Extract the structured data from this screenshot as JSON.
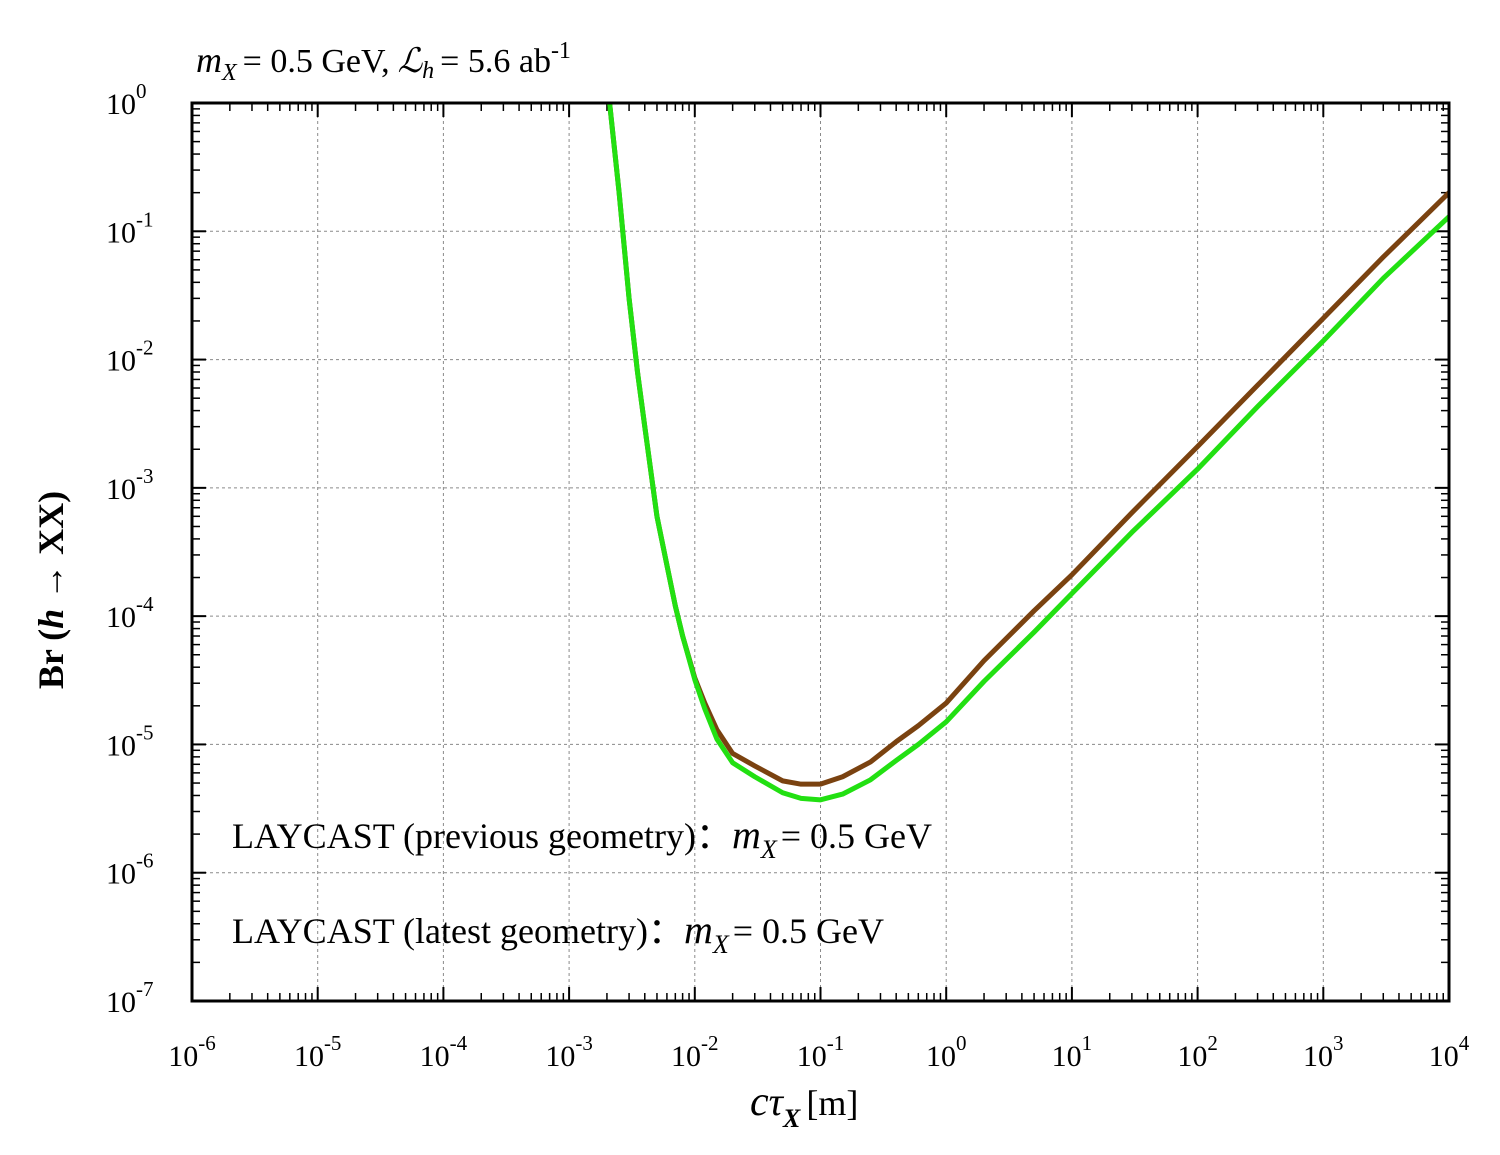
{
  "chart_data": {
    "type": "line",
    "title_parts": {
      "m": "m",
      "m_sub": "X",
      "mass_text": "= 0.5 GeV,",
      "lumi_symbol": "ℒ",
      "lumi_sub": "h",
      "lumi_text": "= 5.6 ab",
      "lumi_sup": "-1"
    },
    "xlabel_parts": {
      "c": "c",
      "tau": "τ",
      "sub": "X",
      "unit": "[m]"
    },
    "ylabel_parts": {
      "pre": "Br (",
      "h": "h",
      "post": " → XX)"
    },
    "x_scale": "log",
    "y_scale": "log",
    "xlim": [
      1e-06,
      10000.0
    ],
    "ylim": [
      1e-07,
      1
    ],
    "x_ticks": [
      {
        "base": "10",
        "exp": "-6",
        "value": 1e-06
      },
      {
        "base": "10",
        "exp": "-5",
        "value": 1e-05
      },
      {
        "base": "10",
        "exp": "-4",
        "value": 0.0001
      },
      {
        "base": "10",
        "exp": "-3",
        "value": 0.001
      },
      {
        "base": "10",
        "exp": "-2",
        "value": 0.01
      },
      {
        "base": "10",
        "exp": "-1",
        "value": 0.1
      },
      {
        "base": "10",
        "exp": "0",
        "value": 1
      },
      {
        "base": "10",
        "exp": "1",
        "value": 10
      },
      {
        "base": "10",
        "exp": "2",
        "value": 100
      },
      {
        "base": "10",
        "exp": "3",
        "value": 1000
      },
      {
        "base": "10",
        "exp": "4",
        "value": 10000
      }
    ],
    "y_ticks": [
      {
        "base": "10",
        "exp": "0",
        "value": 1
      },
      {
        "base": "10",
        "exp": "-1",
        "value": 0.1
      },
      {
        "base": "10",
        "exp": "-2",
        "value": 0.01
      },
      {
        "base": "10",
        "exp": "-3",
        "value": 0.001
      },
      {
        "base": "10",
        "exp": "-4",
        "value": 0.0001
      },
      {
        "base": "10",
        "exp": "-5",
        "value": 1e-05
      },
      {
        "base": "10",
        "exp": "-6",
        "value": 1e-06
      },
      {
        "base": "10",
        "exp": "-7",
        "value": 1e-07
      }
    ],
    "grid": true,
    "legend_position": "bottom-left",
    "series": [
      {
        "name": "previous",
        "color": "#7a4210",
        "label_prefix": "LAYCAST (previous geometry)：",
        "label_m": "m",
        "label_sub": "X",
        "label_suffix": "= 0.5 GeV",
        "x": [
          0.0021,
          0.0025,
          0.003,
          0.0035,
          0.004,
          0.005,
          0.006,
          0.007,
          0.008,
          0.01,
          0.012,
          0.015,
          0.02,
          0.03,
          0.05,
          0.07,
          0.1,
          0.15,
          0.25,
          0.4,
          0.6,
          1,
          2,
          5,
          10,
          30,
          100,
          300,
          1000,
          3000,
          10000
        ],
        "y": [
          1,
          0.2,
          0.03,
          0.008,
          0.003,
          0.0006,
          0.00025,
          0.00012,
          7e-05,
          3.3e-05,
          2.1e-05,
          1.3e-05,
          8.5e-06,
          6.8e-06,
          5.2e-06,
          4.9e-06,
          4.9e-06,
          5.6e-06,
          7.3e-06,
          1.05e-05,
          1.4e-05,
          2.1e-05,
          4.5e-05,
          0.00011,
          0.00021,
          0.00064,
          0.0021,
          0.0063,
          0.021,
          0.063,
          0.2
        ]
      },
      {
        "name": "latest",
        "color": "#22e012",
        "label_prefix": "LAYCAST (latest geometry)：",
        "label_m": "m",
        "label_sub": "X",
        "label_suffix": "= 0.5 GeV",
        "x": [
          0.0021,
          0.0025,
          0.003,
          0.0035,
          0.004,
          0.005,
          0.006,
          0.007,
          0.008,
          0.01,
          0.012,
          0.015,
          0.02,
          0.03,
          0.05,
          0.07,
          0.1,
          0.15,
          0.25,
          0.4,
          0.6,
          1,
          2,
          5,
          10,
          30,
          100,
          300,
          1000,
          3000,
          10000
        ],
        "y": [
          1,
          0.2,
          0.03,
          0.008,
          0.003,
          0.0006,
          0.00025,
          0.00012,
          7e-05,
          3.2e-05,
          1.9e-05,
          1.1e-05,
          7.2e-06,
          5.6e-06,
          4.2e-06,
          3.8e-06,
          3.7e-06,
          4.1e-06,
          5.3e-06,
          7.5e-06,
          1e-05,
          1.5e-05,
          3.1e-05,
          7.5e-05,
          0.00015,
          0.00045,
          0.0014,
          0.0043,
          0.014,
          0.043,
          0.13
        ]
      }
    ]
  }
}
